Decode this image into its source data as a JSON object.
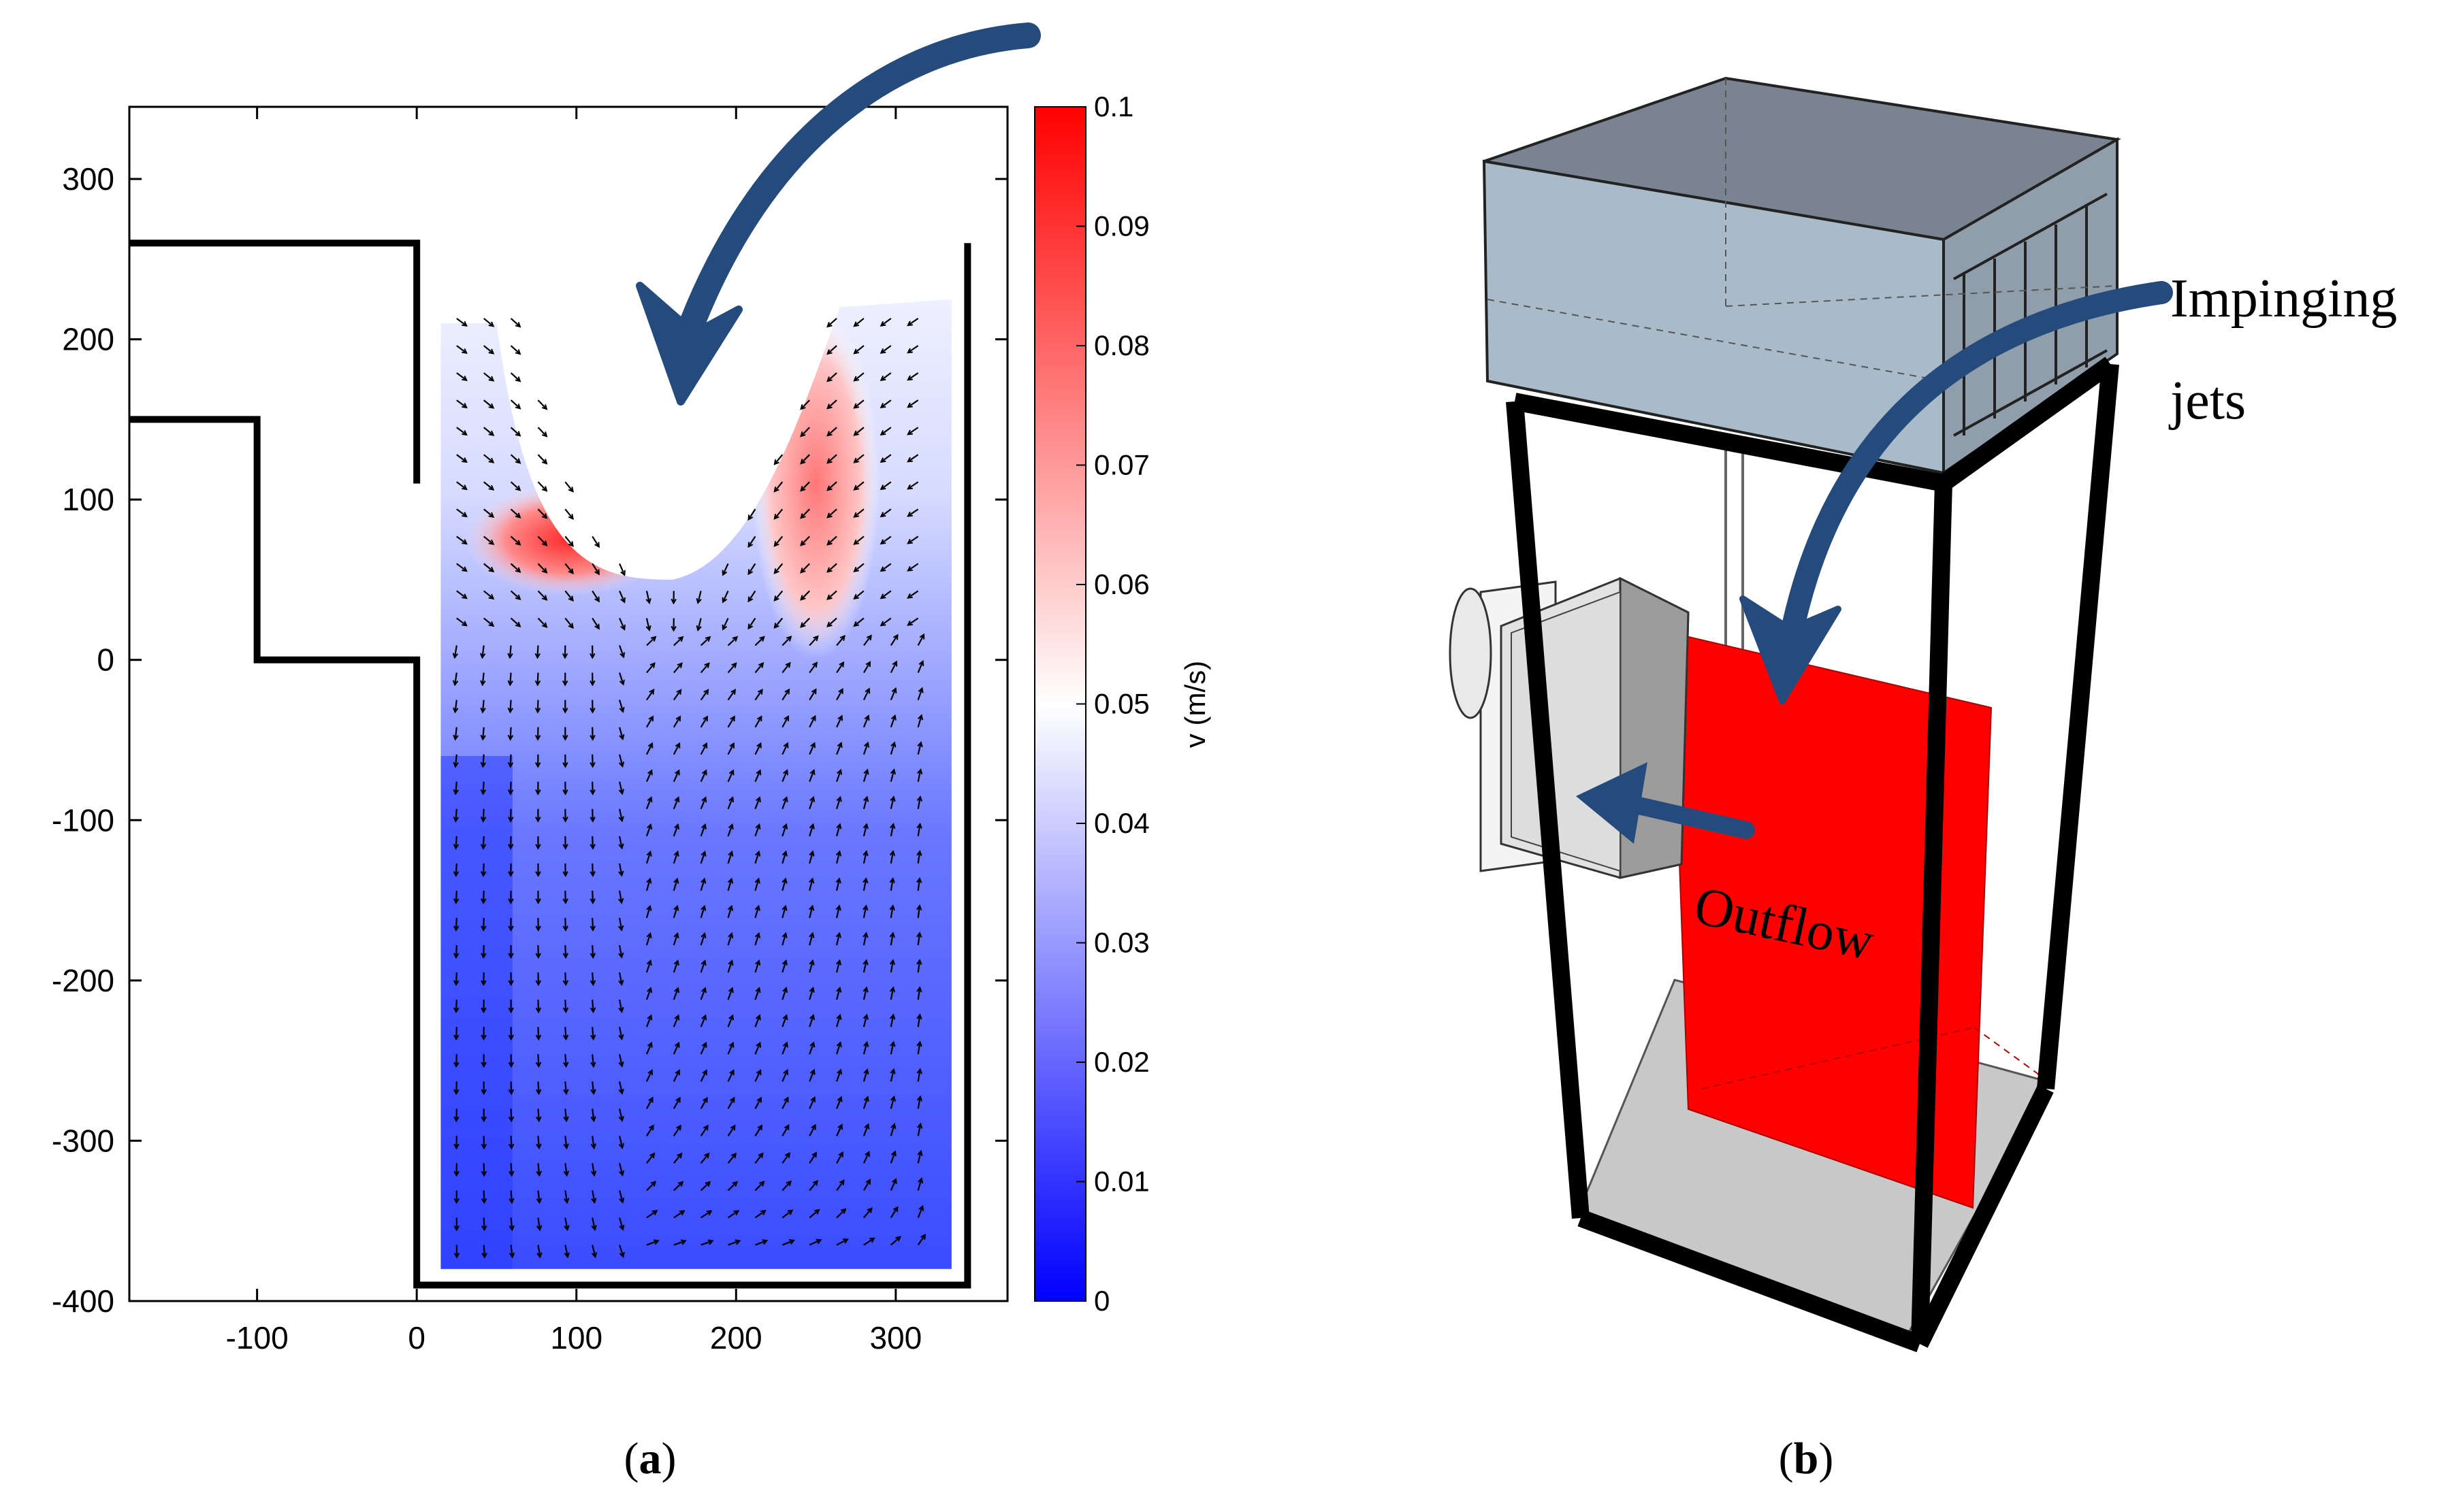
{
  "chart_data": [
    {
      "type": "heatmap",
      "subtype": "velocity-vector-field",
      "title": "",
      "xlabel": "",
      "ylabel": "",
      "xlim": [
        -180,
        370
      ],
      "ylim": [
        -400,
        345
      ],
      "xticks": [
        "-100",
        "0",
        "100",
        "200",
        "300"
      ],
      "xtick_values": [
        -100,
        0,
        100,
        200,
        300
      ],
      "yticks": [
        "300",
        "200",
        "100",
        "0",
        "-100",
        "-200",
        "-300",
        "-400"
      ],
      "ytick_values": [
        300,
        200,
        100,
        0,
        -100,
        -200,
        -300,
        -400
      ],
      "colorbar": {
        "label": "v (m/s)",
        "range": [
          0,
          0.1
        ],
        "ticks": [
          "0.1",
          "0.09",
          "0.08",
          "0.07",
          "0.06",
          "0.05",
          "0.04",
          "0.03",
          "0.02",
          "0.01",
          "0"
        ],
        "tick_values": [
          0.1,
          0.09,
          0.08,
          0.07,
          0.06,
          0.05,
          0.04,
          0.03,
          0.02,
          0.01,
          0
        ],
        "colors": {
          "low": "#0000ff",
          "mid": "#ffffff",
          "high": "#ff0000"
        }
      },
      "measured_region": {
        "x_range": [
          15,
          335
        ],
        "y_range": [
          -380,
          220
        ]
      },
      "walls": [
        {
          "points": [
            [
              -180,
              260
            ],
            [
              0,
              260
            ],
            [
              0,
              110
            ]
          ]
        },
        {
          "points": [
            [
              -180,
              150
            ],
            [
              -100,
              150
            ],
            [
              -100,
              0
            ],
            [
              0,
              0
            ],
            [
              0,
              -390
            ],
            [
              345,
              -390
            ],
            [
              345,
              260
            ]
          ]
        }
      ],
      "jet_arrow_direction": "downward",
      "grid": false,
      "legend": "none",
      "panel_label": "a"
    },
    {
      "type": "diagram",
      "subtype": "3d-apparatus-schematic",
      "annotations": {
        "inflow_line1": "Impinging",
        "inflow_line2": "jets",
        "outflow": "Outflow"
      },
      "panel_label": "b",
      "colors": {
        "arrow": "#244b7c",
        "laser_sheet": "#ff0000",
        "tank_top": "#9fb1c0",
        "frame": "#000000",
        "floor": "#c8c8c8"
      }
    }
  ]
}
